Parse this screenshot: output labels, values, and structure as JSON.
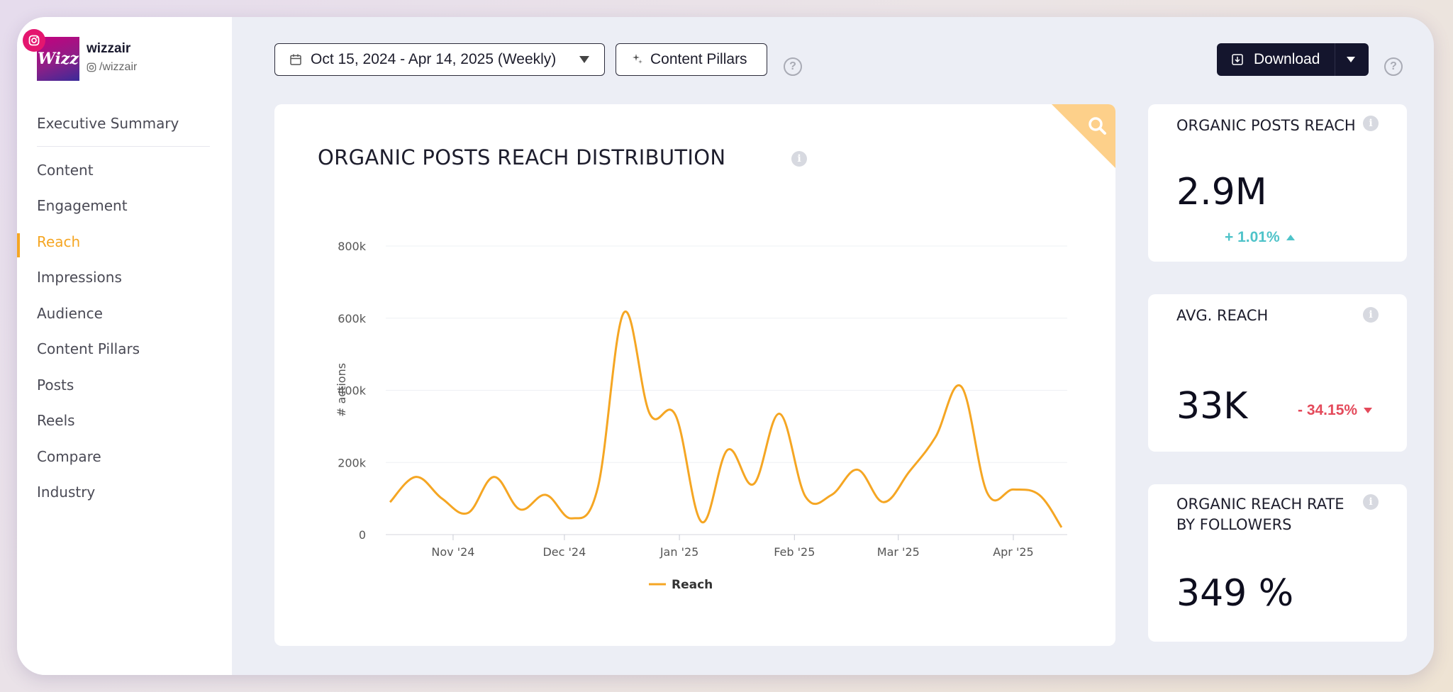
{
  "profile": {
    "logo_text": "Wizz",
    "name": "wizzair",
    "handle": "/wizzair"
  },
  "sidebar": {
    "summary": "Executive Summary",
    "items": [
      {
        "label": "Content"
      },
      {
        "label": "Engagement"
      },
      {
        "label": "Reach",
        "active": true
      },
      {
        "label": "Impressions"
      },
      {
        "label": "Audience"
      },
      {
        "label": "Content Pillars"
      },
      {
        "label": "Posts"
      },
      {
        "label": "Reels"
      },
      {
        "label": "Compare"
      },
      {
        "label": "Industry"
      }
    ]
  },
  "toolbar": {
    "date_range": "Oct 15, 2024 - Apr 14, 2025 (Weekly)",
    "pillars_label": "Content Pillars",
    "download_label": "Download",
    "help": "?"
  },
  "chart_card": {
    "title": "ORGANIC POSTS REACH DISTRIBUTION"
  },
  "chart_data": {
    "type": "line",
    "ylabel": "# actions",
    "ylim": [
      0,
      800000
    ],
    "y_ticks": [
      "0",
      "200k",
      "400k",
      "600k",
      "800k"
    ],
    "x_ticks": [
      "Nov '24",
      "Dec '24",
      "Jan '25",
      "Feb '25",
      "Mar '25",
      "Apr '25"
    ],
    "series": [
      {
        "name": "Reach",
        "color": "#f5a623",
        "x": [
          "2024-10-15",
          "2024-10-22",
          "2024-10-29",
          "2024-11-05",
          "2024-11-12",
          "2024-11-19",
          "2024-11-26",
          "2024-12-03",
          "2024-12-10",
          "2024-12-17",
          "2024-12-24",
          "2024-12-31",
          "2025-01-07",
          "2025-01-14",
          "2025-01-21",
          "2025-01-28",
          "2025-02-04",
          "2025-02-11",
          "2025-02-18",
          "2025-02-25",
          "2025-03-04",
          "2025-03-11",
          "2025-03-18",
          "2025-03-25",
          "2025-04-01",
          "2025-04-08",
          "2025-04-14"
        ],
        "values": [
          90000,
          160000,
          100000,
          60000,
          160000,
          70000,
          110000,
          45000,
          130000,
          615000,
          335000,
          330000,
          35000,
          235000,
          140000,
          335000,
          105000,
          110000,
          180000,
          90000,
          175000,
          270000,
          410000,
          115000,
          125000,
          110000,
          20000
        ]
      }
    ]
  },
  "kpis": [
    {
      "label": "ORGANIC POSTS REACH",
      "value": "2.9M",
      "change": "+ 1.01%",
      "direction": "up"
    },
    {
      "label": "AVG. REACH",
      "value": "33K",
      "change": "- 34.15%",
      "direction": "down"
    },
    {
      "label": "ORGANIC REACH RATE BY FOLLOWERS",
      "value": "349 %"
    }
  ],
  "colors": {
    "accent": "#f5a623",
    "positive": "#4fc3c9",
    "negative": "#e44a5b",
    "dark": "#14152d"
  }
}
